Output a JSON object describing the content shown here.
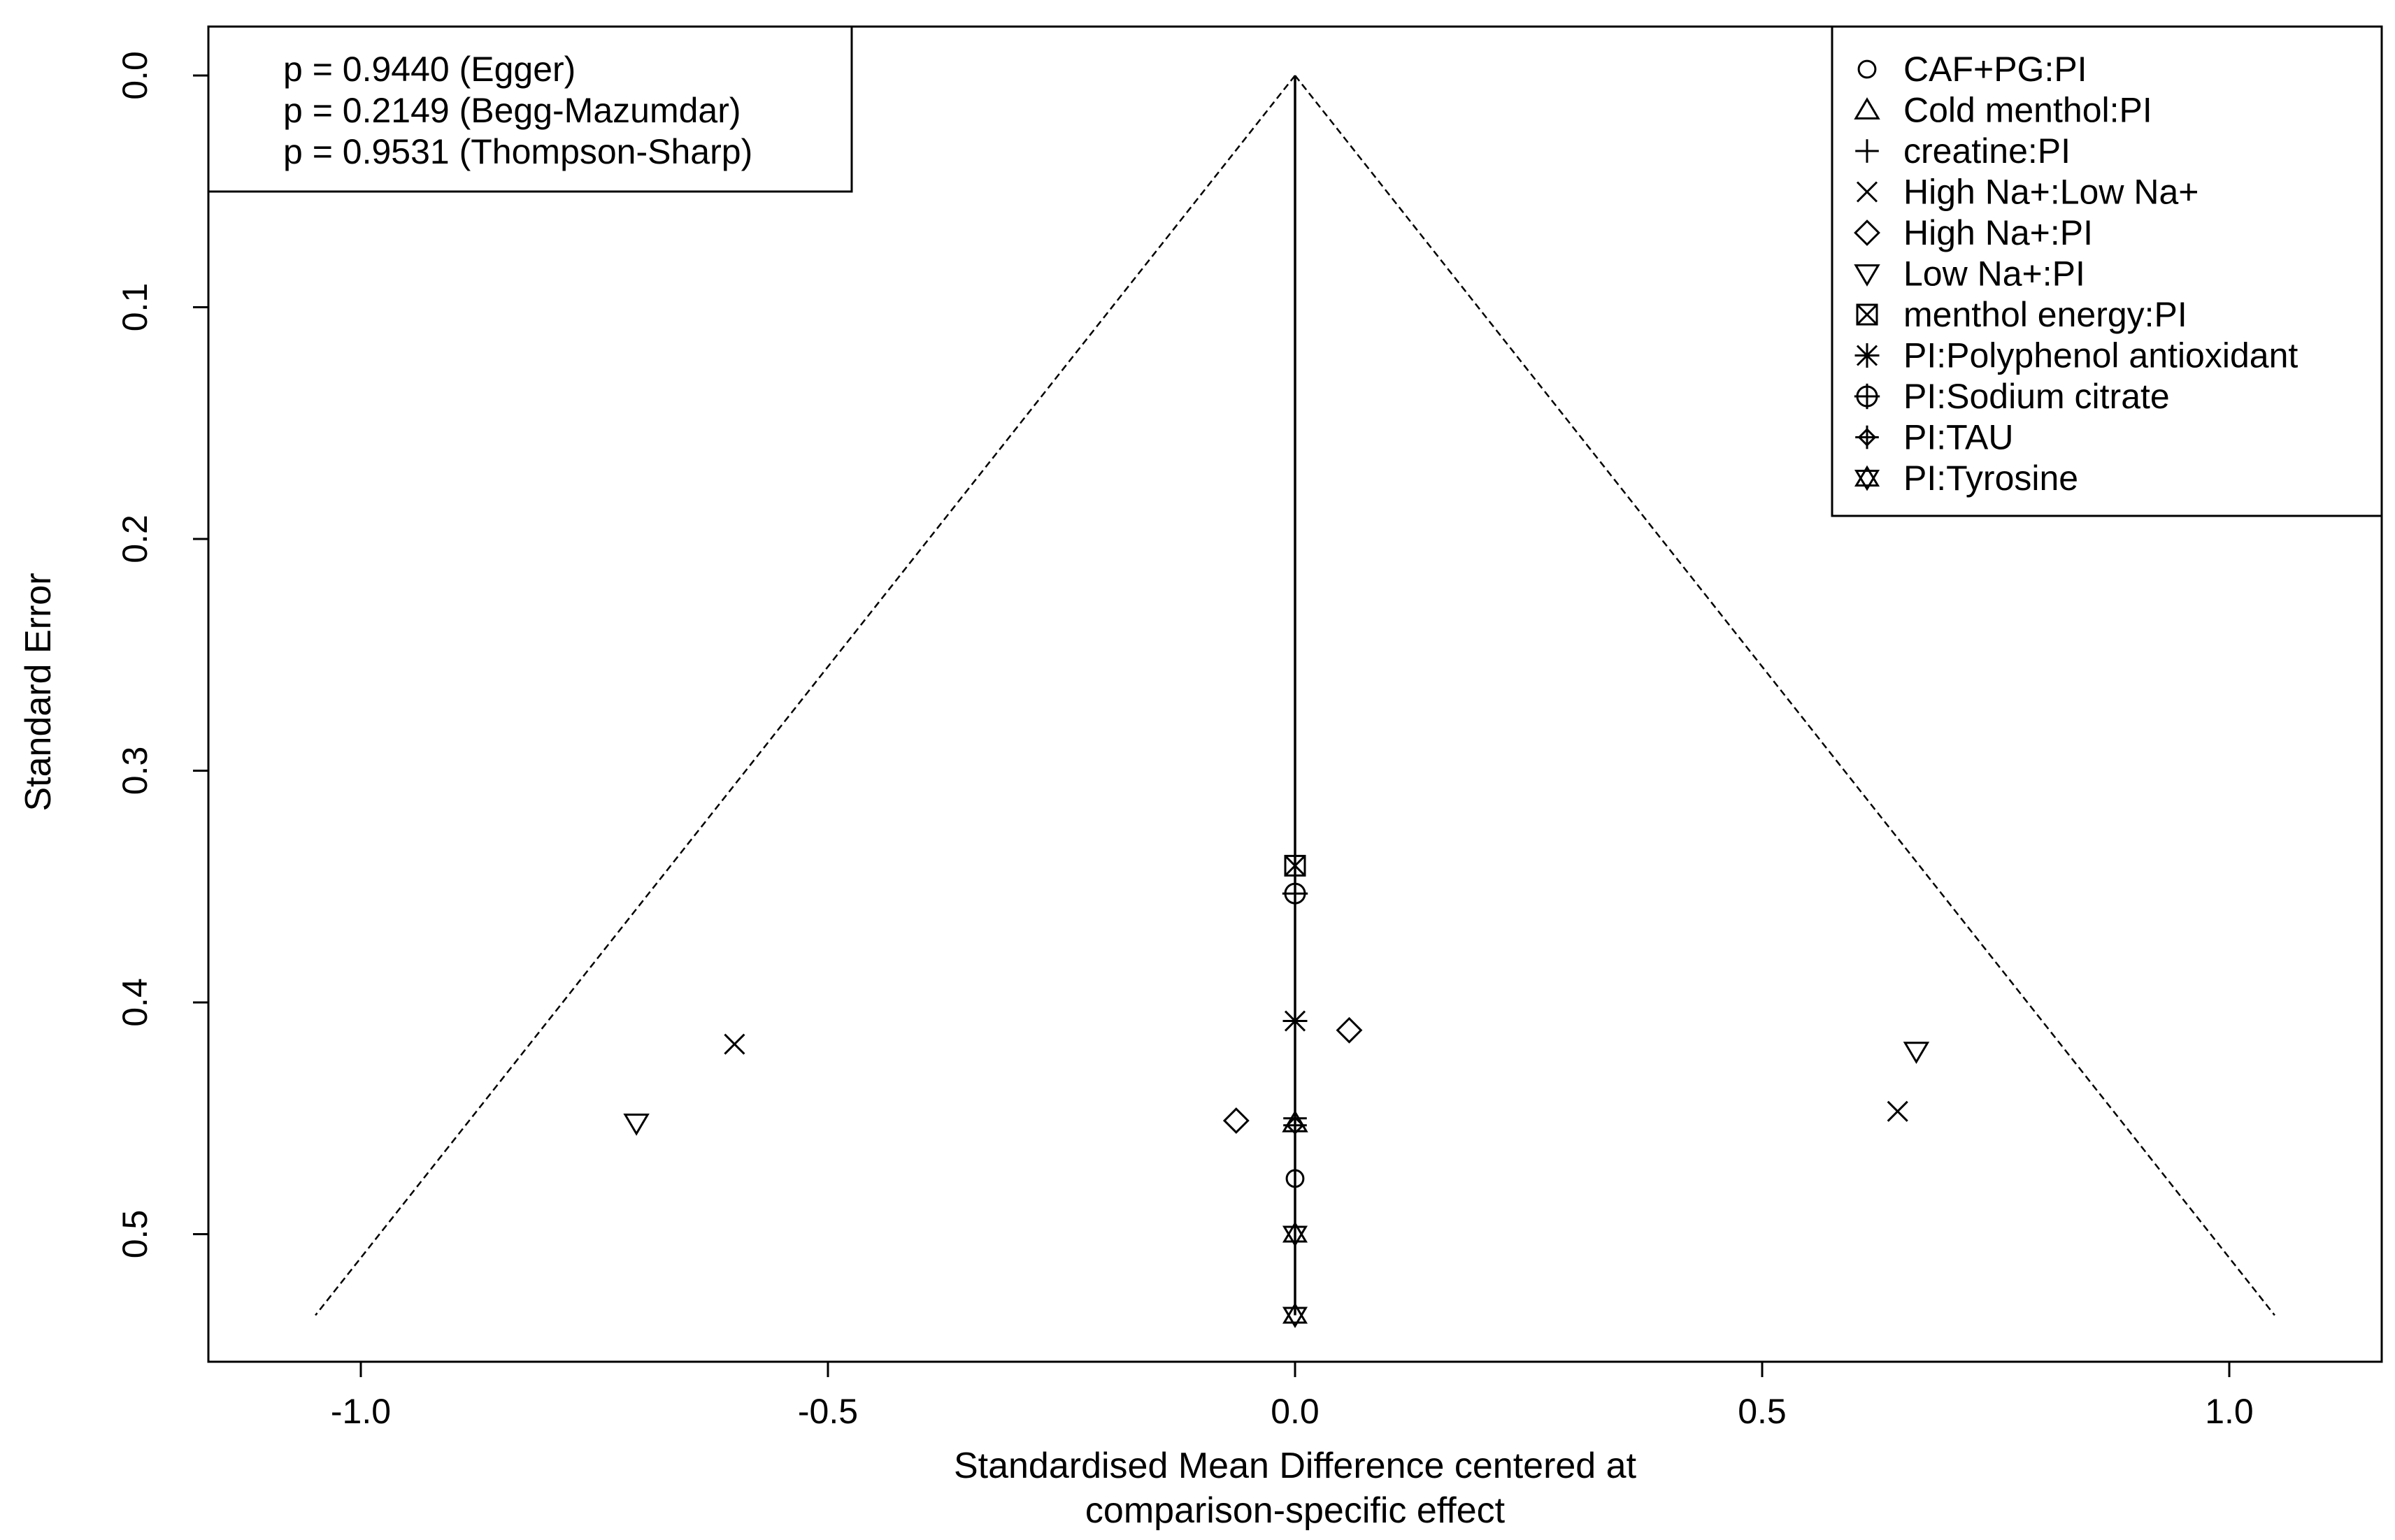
{
  "chart_data": {
    "type": "scatter",
    "subtype": "funnel",
    "xlabel_lines": [
      "Standardised Mean Difference centered at",
      "comparison-specific effect"
    ],
    "ylabel": "Standard Error",
    "xlim": [
      -1.15,
      1.15
    ],
    "ylim": [
      0,
      0.555
    ],
    "y_reversed": true,
    "xticks": [
      -1.0,
      -0.5,
      0.0,
      0.5,
      1.0
    ],
    "xtick_labels": [
      "-1.0",
      "-0.5",
      "0.0",
      "0.5",
      "1.0"
    ],
    "yticks": [
      0.0,
      0.1,
      0.2,
      0.3,
      0.4,
      0.5
    ],
    "ytick_labels": [
      "0.0",
      "0.1",
      "0.2",
      "0.3",
      "0.4",
      "0.5"
    ],
    "funnel": {
      "apex": [
        0,
        0
      ],
      "max_se": 0.535,
      "z": 1.96
    },
    "tests": [
      "p = 0.9440 (Egger)",
      "p = 0.2149 (Begg-Mazumdar)",
      "p = 0.9531 (Thompson-Sharp)"
    ],
    "legend_position": "top-right",
    "legend": [
      {
        "label": "CAF+PG:PI",
        "symbol": "circle"
      },
      {
        "label": "Cold menthol:PI",
        "symbol": "triangle-up"
      },
      {
        "label": "creatine:PI",
        "symbol": "plus"
      },
      {
        "label": "High Na+:Low Na+",
        "symbol": "cross"
      },
      {
        "label": "High Na+:PI",
        "symbol": "diamond"
      },
      {
        "label": "Low Na+:PI",
        "symbol": "triangle-down"
      },
      {
        "label": "menthol energy:PI",
        "symbol": "square-x"
      },
      {
        "label": "PI:Polyphenol antioxidant",
        "symbol": "asterisk"
      },
      {
        "label": "PI:Sodium citrate",
        "symbol": "circle-plus"
      },
      {
        "label": "PI:TAU",
        "symbol": "diamond-plus"
      },
      {
        "label": "PI:Tyrosine",
        "symbol": "star-of-david"
      }
    ],
    "points": [
      {
        "series": "CAF+PG:PI",
        "symbol": "circle",
        "x": 0.0,
        "y": 0.476
      },
      {
        "series": "Cold menthol:PI",
        "symbol": "triangle-up",
        "x": 0.0,
        "y": 0.452
      },
      {
        "series": "creatine:PI",
        "symbol": "plus",
        "x": 0.0,
        "y": 0.45
      },
      {
        "series": "High Na+:Low Na+",
        "symbol": "cross",
        "x": -0.6,
        "y": 0.418
      },
      {
        "series": "High Na+:Low Na+",
        "symbol": "cross",
        "x": 0.645,
        "y": 0.447
      },
      {
        "series": "High Na+:PI",
        "symbol": "diamond",
        "x": 0.058,
        "y": 0.412
      },
      {
        "series": "High Na+:PI",
        "symbol": "diamond",
        "x": -0.063,
        "y": 0.451
      },
      {
        "series": "Low Na+:PI",
        "symbol": "triangle-down",
        "x": -0.705,
        "y": 0.452
      },
      {
        "series": "Low Na+:PI",
        "symbol": "triangle-down",
        "x": 0.665,
        "y": 0.421
      },
      {
        "series": "menthol energy:PI",
        "symbol": "square-x",
        "x": 0.0,
        "y": 0.341
      },
      {
        "series": "PI:Polyphenol antioxidant",
        "symbol": "asterisk",
        "x": 0.0,
        "y": 0.408
      },
      {
        "series": "PI:Sodium citrate",
        "symbol": "circle-plus",
        "x": 0.0,
        "y": 0.353
      },
      {
        "series": "PI:TAU",
        "symbol": "diamond-plus",
        "x": 0.0,
        "y": 0.453
      },
      {
        "series": "PI:Tyrosine",
        "symbol": "star-of-david",
        "x": 0.0,
        "y": 0.5
      },
      {
        "series": "PI:Tyrosine",
        "symbol": "star-of-david",
        "x": 0.0,
        "y": 0.535
      }
    ]
  }
}
